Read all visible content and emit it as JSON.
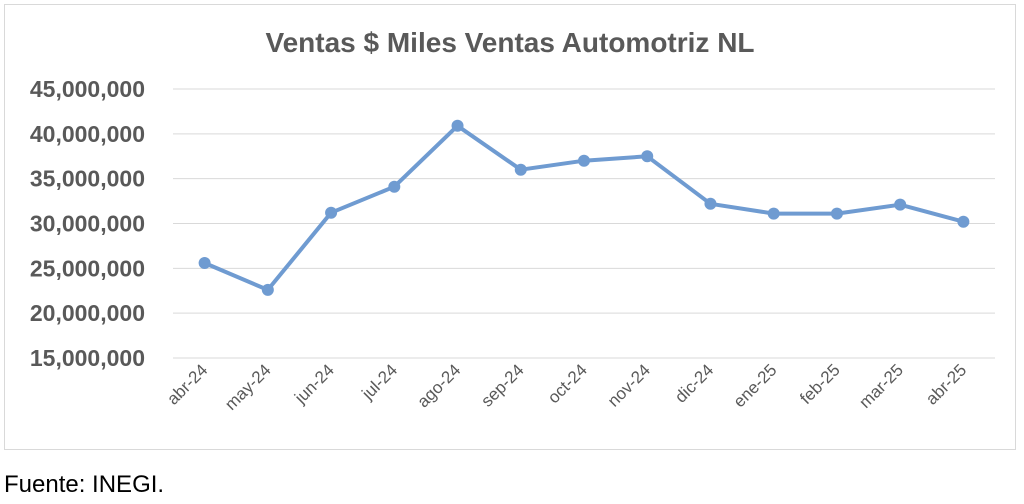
{
  "chart_data": {
    "type": "line",
    "title": "Ventas $ Miles Ventas Automotriz NL",
    "xlabel": "",
    "ylabel": "",
    "categories": [
      "abr-24",
      "may-24",
      "jun-24",
      "jul-24",
      "ago-24",
      "sep-24",
      "oct-24",
      "nov-24",
      "dic-24",
      "ene-25",
      "feb-25",
      "mar-25",
      "abr-25"
    ],
    "series": [
      {
        "values": [
          25600000,
          22600000,
          31200000,
          34100000,
          40900000,
          36000000,
          37000000,
          37500000,
          32200000,
          31100000,
          31100000,
          32100000,
          30200000
        ]
      }
    ],
    "ylim": [
      15000000,
      45000000
    ],
    "yticks": [
      15000000,
      20000000,
      25000000,
      30000000,
      35000000,
      40000000,
      45000000
    ],
    "ytick_labels": [
      "15,000,000",
      "20,000,000",
      "25,000,000",
      "30,000,000",
      "35,000,000",
      "40,000,000",
      "45,000,000"
    ],
    "grid": true,
    "legend": "none",
    "colors": {
      "series": "#6f9bd1",
      "grid": "#d9d9d9",
      "text": "#595959"
    }
  },
  "footer": {
    "source": "Fuente: INEGI."
  }
}
